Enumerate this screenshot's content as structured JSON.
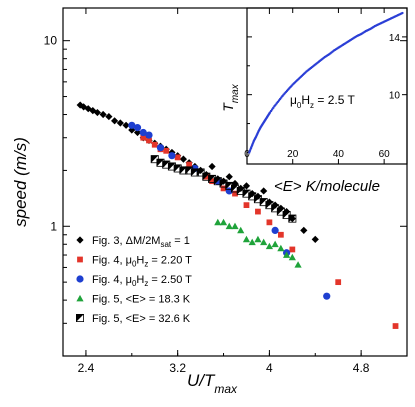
{
  "chart_data": [
    {
      "type": "scatter",
      "xlabel": "U/T",
      "xlabel_sub": "max",
      "ylabel": "speed (m/s)",
      "x_ticks": [
        "2.4",
        "3.2",
        "4",
        "4.8"
      ],
      "x_tick_values": [
        2.4,
        3.2,
        4.0,
        4.8
      ],
      "y_ticks": [
        "1",
        "10"
      ],
      "y_tick_values": [
        1,
        10
      ],
      "y_scale": "log",
      "xlim": [
        2.2,
        5.2
      ],
      "ylim": [
        0.2,
        15
      ],
      "legend_position": "bottom-left",
      "series": [
        {
          "name": "Fig. 3, ΔM/2M",
          "name_sub": "sat",
          "name_tail": " = 1",
          "marker": "diamond",
          "color": "#000000",
          "x": [
            2.35,
            2.38,
            2.42,
            2.46,
            2.5,
            2.55,
            2.6,
            2.65,
            2.7,
            2.75,
            2.8,
            2.85,
            2.9,
            2.95,
            3.0,
            3.05,
            3.1,
            3.15,
            3.2,
            3.25,
            3.3,
            3.35,
            3.4,
            3.45,
            3.5,
            3.55,
            3.6,
            3.65,
            3.7,
            3.75,
            3.8,
            3.85,
            3.9,
            3.95,
            4.0,
            4.05,
            4.1,
            4.15,
            4.2,
            4.3,
            4.4
          ],
          "y": [
            4.5,
            4.4,
            4.3,
            4.2,
            4.1,
            4.0,
            3.9,
            3.7,
            3.6,
            3.5,
            3.3,
            3.2,
            3.0,
            2.9,
            2.8,
            2.7,
            2.6,
            2.5,
            2.4,
            2.3,
            2.2,
            2.1,
            2.0,
            1.9,
            2.1,
            1.8,
            1.75,
            1.85,
            1.7,
            1.6,
            1.65,
            1.5,
            1.45,
            1.55,
            1.35,
            1.3,
            1.25,
            1.2,
            1.1,
            0.95,
            0.85
          ]
        },
        {
          "name": "Fig. 4, μ",
          "name_sub": "0",
          "name_tail": "H",
          "name_tail_sub": "z",
          "name_tail2": " = 2.20 T",
          "marker": "square",
          "color": "#e3352a",
          "x": [
            2.9,
            2.95,
            3.0,
            3.05,
            3.1,
            3.2,
            3.3,
            3.45,
            3.5,
            3.6,
            3.7,
            3.8,
            3.9,
            4.0,
            4.1,
            4.2,
            4.6,
            5.1
          ],
          "y": [
            3.0,
            2.9,
            2.75,
            2.6,
            2.55,
            2.35,
            2.15,
            1.85,
            1.75,
            1.6,
            1.5,
            1.3,
            1.2,
            1.05,
            0.9,
            0.75,
            0.5,
            0.29
          ]
        },
        {
          "name": "Fig. 4, μ",
          "name_sub": "0",
          "name_tail": "H",
          "name_tail_sub": "z",
          "name_tail2": " = 2.50 T",
          "marker": "circle",
          "color": "#1e3fd0",
          "x": [
            2.8,
            2.85,
            2.9,
            2.95,
            3.05,
            3.15,
            3.35,
            3.55,
            3.65,
            4.05,
            4.15,
            4.5
          ],
          "y": [
            3.5,
            3.4,
            3.2,
            3.1,
            2.65,
            2.4,
            2.05,
            1.75,
            1.55,
            0.95,
            0.72,
            0.42
          ]
        },
        {
          "name": "Fig. 5, <E> = 18.3 K",
          "marker": "triangle",
          "color": "#1fa33a",
          "x": [
            3.55,
            3.6,
            3.65,
            3.7,
            3.75,
            3.8,
            3.85,
            3.9,
            3.95,
            4.0,
            4.05,
            4.1,
            4.15,
            4.2,
            4.25
          ],
          "y": [
            1.05,
            1.05,
            1.0,
            1.0,
            0.95,
            0.85,
            0.82,
            0.85,
            0.82,
            0.78,
            0.8,
            0.76,
            0.7,
            0.68,
            0.62
          ]
        },
        {
          "name": "Fig. 5, <E> = 32.6 K",
          "marker": "halfsquare",
          "color": "#000000",
          "x": [
            3.0,
            3.05,
            3.1,
            3.15,
            3.2,
            3.25,
            3.3,
            3.35,
            3.4,
            3.45,
            3.5,
            3.55,
            3.6,
            3.65,
            3.7,
            3.75,
            3.8,
            3.85,
            3.9,
            3.95,
            4.0,
            4.05,
            4.1,
            4.15,
            4.2
          ],
          "y": [
            2.3,
            2.2,
            2.15,
            2.1,
            2.05,
            2.0,
            2.0,
            1.95,
            1.95,
            1.85,
            1.8,
            1.75,
            1.7,
            1.65,
            1.6,
            1.55,
            1.5,
            1.45,
            1.4,
            1.35,
            1.3,
            1.25,
            1.2,
            1.15,
            1.1
          ]
        }
      ]
    },
    {
      "type": "scatter",
      "inset": true,
      "xlabel": "<E> K/molecule",
      "ylabel": "T",
      "ylabel_sub": "max",
      "annotation": "μ",
      "annotation_sub": "0",
      "annotation_tail": "H",
      "annotation_tail_sub": "z",
      "annotation_tail2": " = 2.5 T",
      "x_ticks": [
        "0",
        "20",
        "40",
        "60"
      ],
      "x_tick_values": [
        0,
        20,
        40,
        60
      ],
      "y_ticks": [
        "10",
        "14"
      ],
      "y_tick_values": [
        10,
        14
      ],
      "xlim": [
        0,
        70
      ],
      "ylim": [
        5.2,
        16
      ],
      "series": [
        {
          "marker": "dot",
          "color": "#2b3fd6",
          "x": [
            1,
            2,
            3,
            4,
            5,
            6,
            7,
            8,
            9,
            10,
            12,
            14,
            16,
            18,
            20,
            22,
            24,
            26,
            28,
            30,
            32,
            34,
            36,
            38,
            40,
            42,
            44,
            46,
            48,
            50,
            52,
            54,
            56,
            58,
            60,
            62,
            64,
            66,
            68
          ],
          "y": [
            6.0,
            6.4,
            6.8,
            7.1,
            7.45,
            7.75,
            8.0,
            8.25,
            8.5,
            8.75,
            9.2,
            9.6,
            10.0,
            10.35,
            10.7,
            11.0,
            11.3,
            11.6,
            11.85,
            12.1,
            12.35,
            12.6,
            12.8,
            13.05,
            13.25,
            13.45,
            13.65,
            13.85,
            14.05,
            14.2,
            14.4,
            14.55,
            14.75,
            14.9,
            15.05,
            15.2,
            15.35,
            15.5,
            15.65
          ]
        }
      ]
    }
  ]
}
